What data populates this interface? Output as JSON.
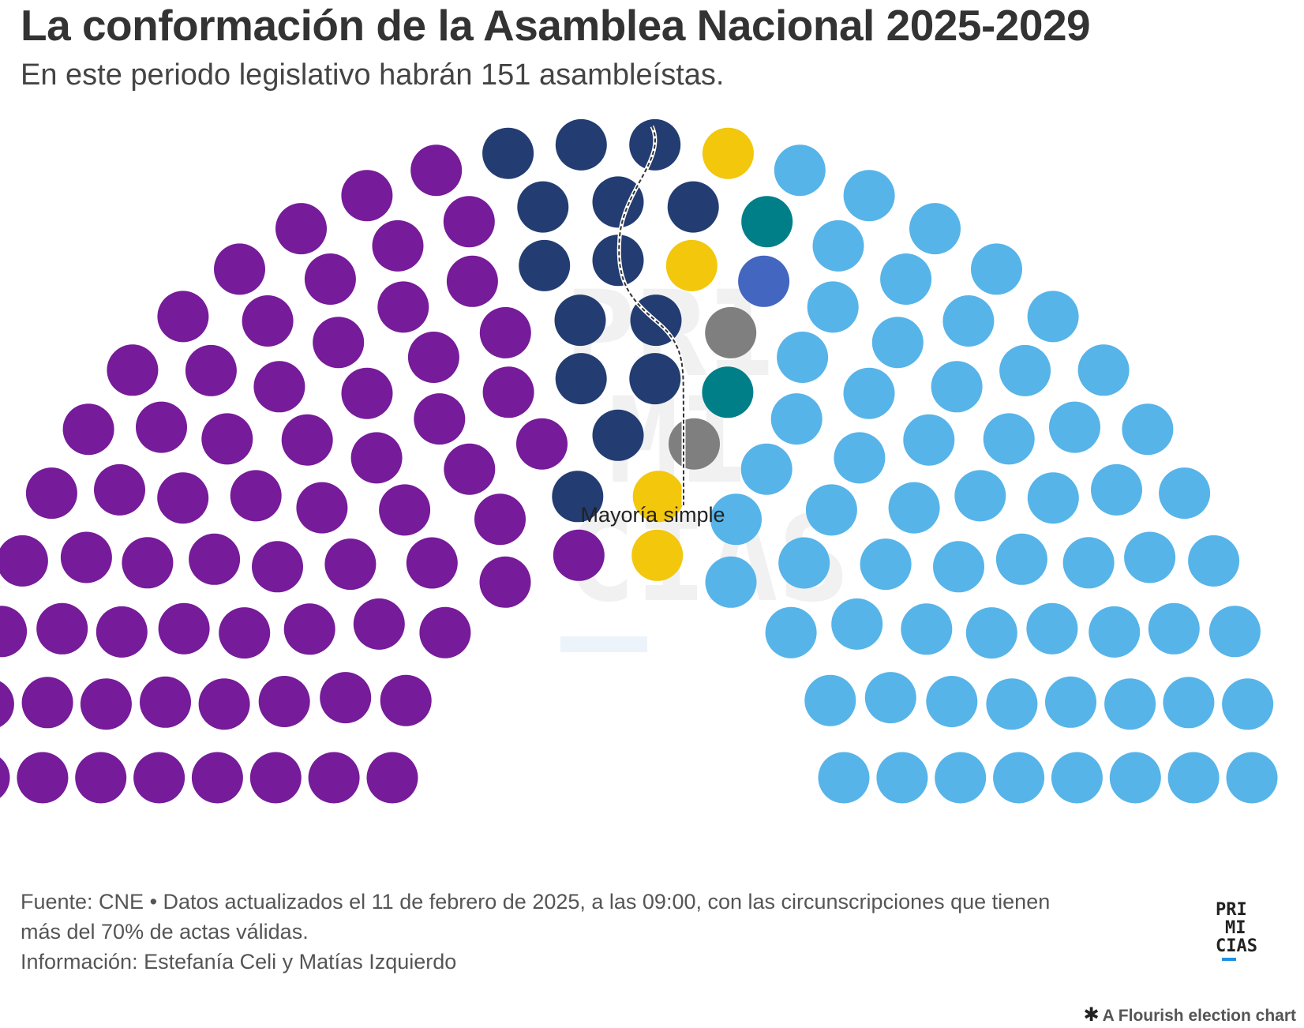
{
  "header": {
    "title": "La conformación de la Asamblea Nacional 2025-2029",
    "subtitle": "En este periodo legislativo habrán 151 asambleístas."
  },
  "chart_data": {
    "type": "parliament",
    "total_seats": 151,
    "majority_label": "Mayoría simple",
    "watermark_text": "PRIMICIAS",
    "parties": [
      {
        "seats": 67,
        "color": "#761b99"
      },
      {
        "seats": 14,
        "color": "#233d72"
      },
      {
        "seats": 4,
        "color": "#f2c70c"
      },
      {
        "seats": 2,
        "color": "#7f7f7f"
      },
      {
        "seats": 2,
        "color": "#007f89"
      },
      {
        "seats": 1,
        "color": "#4366c0"
      },
      {
        "seats": 61,
        "color": "#56b4e9"
      }
    ]
  },
  "footer": {
    "source_line1": "Fuente: CNE • Datos actualizados el 11 de febrero de 2025, a las 09:00, con las circunscripciones que tienen",
    "source_line2": "más del 70% de actas válidas.",
    "credits": "Información: Estefanía Celi y Matías Izquierdo"
  },
  "logo": {
    "line1": "PRI",
    "line2": "MI",
    "line3": "CIAS"
  },
  "flourish_credit": "A Flourish election chart"
}
